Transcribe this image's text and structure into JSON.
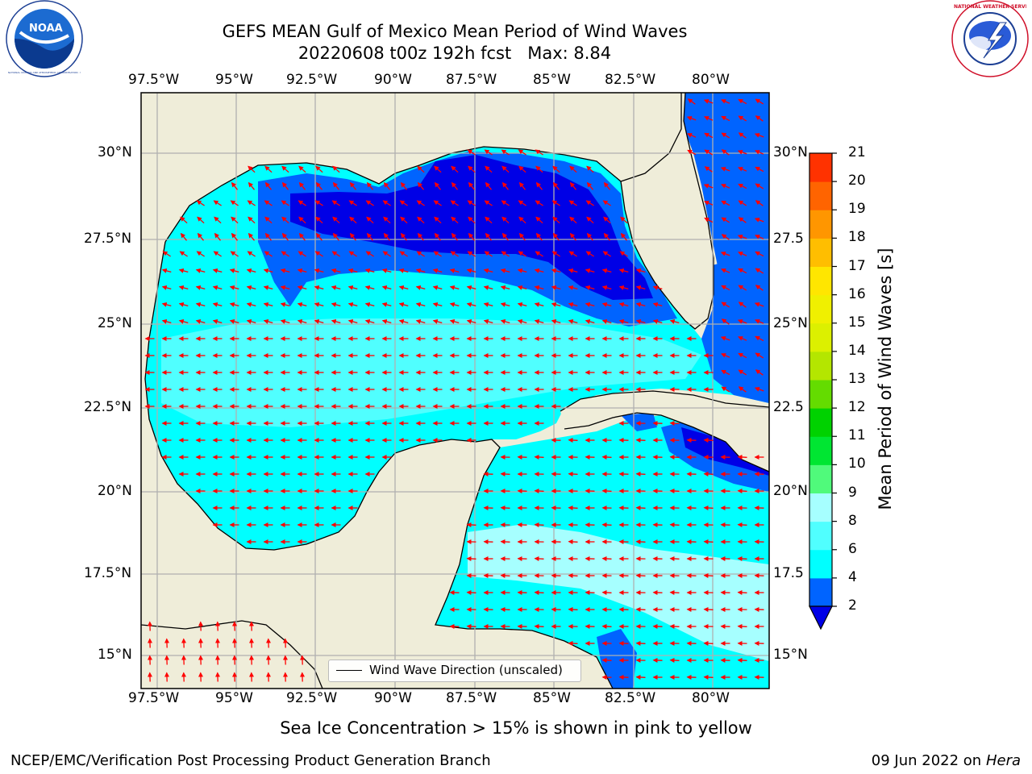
{
  "header": {
    "title_line1": "GEFS MEAN Gulf of Mexico Mean Period of Wind Waves",
    "title_line2": "20220608 t00z 192h fcst   Max: 8.84"
  },
  "logos": {
    "noaa_text": "NOAA",
    "noaa_ring_text": "NATIONAL OCEANIC AND ATMOSPHERIC ADMINISTRATION · U.S. DEPARTMENT OF COMMERCE",
    "nws_ring_text": "NATIONAL WEATHER SERVICE"
  },
  "map": {
    "lon_ticks": [
      "97.5°W",
      "95°W",
      "92.5°W",
      "90°W",
      "87.5°W",
      "85°W",
      "82.5°W",
      "80°W"
    ],
    "lat_ticks": [
      "30°N",
      "27.5°N",
      "25°N",
      "22.5°N",
      "20°N",
      "17.5°N",
      "15°N"
    ],
    "lat_ticks_right": [
      "30°N",
      "27.5",
      "25°N",
      "22.5",
      "20°N",
      "17.5",
      "15°N"
    ],
    "legend": "Wind Wave Direction (unscaled)",
    "colors": {
      "land": "#efedd9",
      "band_2_4": "#0064ff",
      "band_lt2": "#0000e6",
      "band_4_6": "#00ffff",
      "band_6_8": "#50ffff",
      "band_8_9": "#a6ffff",
      "arrow": "#ff0000"
    }
  },
  "colorbar": {
    "label": "Mean Period of Wind Waves [s]",
    "ticks": [
      "2",
      "4",
      "6",
      "8",
      "9",
      "10",
      "11",
      "12",
      "13",
      "14",
      "15",
      "16",
      "17",
      "18",
      "19",
      "20",
      "21"
    ],
    "colors": [
      "#0064ff",
      "#00ffff",
      "#50ffff",
      "#a6ffff",
      "#50fa7b",
      "#00e632",
      "#00d200",
      "#64dc00",
      "#b4e600",
      "#dcf000",
      "#f0f000",
      "#ffe600",
      "#ffbe00",
      "#ff9600",
      "#ff6400",
      "#ff3200"
    ],
    "under_color": "#0000e6"
  },
  "footer": {
    "note": "Sea Ice Concentration > 15% is shown in pink to yellow",
    "left": "NCEP/EMC/Verification Post Processing Product Generation Branch",
    "date": "09 Jun 2022 on",
    "host": "Hera"
  }
}
